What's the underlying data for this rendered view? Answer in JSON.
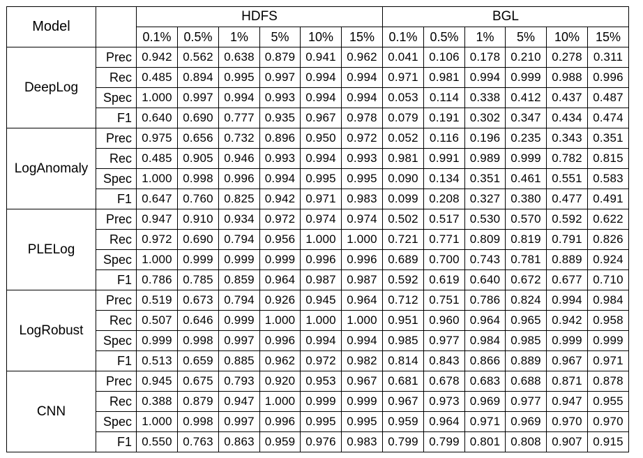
{
  "header": {
    "model_label": "Model",
    "datasets": [
      "HDFS",
      "BGL"
    ],
    "percentages": [
      "0.1%",
      "0.5%",
      "1%",
      "5%",
      "10%",
      "15%"
    ]
  },
  "metrics": [
    "Prec",
    "Rec",
    "Spec",
    "F1"
  ],
  "models": [
    {
      "name": "DeepLog",
      "rows": [
        [
          "0.942",
          "0.562",
          "0.638",
          "0.879",
          "0.941",
          "0.962",
          "0.041",
          "0.106",
          "0.178",
          "0.210",
          "0.278",
          "0.311"
        ],
        [
          "0.485",
          "0.894",
          "0.995",
          "0.997",
          "0.994",
          "0.994",
          "0.971",
          "0.981",
          "0.994",
          "0.999",
          "0.988",
          "0.996"
        ],
        [
          "1.000",
          "0.997",
          "0.994",
          "0.993",
          "0.994",
          "0.994",
          "0.053",
          "0.114",
          "0.338",
          "0.412",
          "0.437",
          "0.487"
        ],
        [
          "0.640",
          "0.690",
          "0.777",
          "0.935",
          "0.967",
          "0.978",
          "0.079",
          "0.191",
          "0.302",
          "0.347",
          "0.434",
          "0.474"
        ]
      ]
    },
    {
      "name": "LogAnomaly",
      "rows": [
        [
          "0.975",
          "0.656",
          "0.732",
          "0.896",
          "0.950",
          "0.972",
          "0.052",
          "0.116",
          "0.196",
          "0.235",
          "0.343",
          "0.351"
        ],
        [
          "0.485",
          "0.905",
          "0.946",
          "0.993",
          "0.994",
          "0.993",
          "0.981",
          "0.991",
          "0.989",
          "0.999",
          "0.782",
          "0.815"
        ],
        [
          "1.000",
          "0.998",
          "0.996",
          "0.994",
          "0.995",
          "0.995",
          "0.090",
          "0.134",
          "0.351",
          "0.461",
          "0.551",
          "0.583"
        ],
        [
          "0.647",
          "0.760",
          "0.825",
          "0.942",
          "0.971",
          "0.983",
          "0.099",
          "0.208",
          "0.327",
          "0.380",
          "0.477",
          "0.491"
        ]
      ]
    },
    {
      "name": "PLELog",
      "rows": [
        [
          "0.947",
          "0.910",
          "0.934",
          "0.972",
          "0.974",
          "0.974",
          "0.502",
          "0.517",
          "0.530",
          "0.570",
          "0.592",
          "0.622"
        ],
        [
          "0.972",
          "0.690",
          "0.794",
          "0.956",
          "1.000",
          "1.000",
          "0.721",
          "0.771",
          "0.809",
          "0.819",
          "0.791",
          "0.826"
        ],
        [
          "1.000",
          "0.999",
          "0.999",
          "0.999",
          "0.996",
          "0.996",
          "0.689",
          "0.700",
          "0.743",
          "0.781",
          "0.889",
          "0.924"
        ],
        [
          "0.786",
          "0.785",
          "0.859",
          "0.964",
          "0.987",
          "0.987",
          "0.592",
          "0.619",
          "0.640",
          "0.672",
          "0.677",
          "0.710"
        ]
      ]
    },
    {
      "name": "LogRobust",
      "rows": [
        [
          "0.519",
          "0.673",
          "0.794",
          "0.926",
          "0.945",
          "0.964",
          "0.712",
          "0.751",
          "0.786",
          "0.824",
          "0.994",
          "0.984"
        ],
        [
          "0.507",
          "0.646",
          "0.999",
          "1.000",
          "1.000",
          "1.000",
          "0.951",
          "0.960",
          "0.964",
          "0.965",
          "0.942",
          "0.958"
        ],
        [
          "0.999",
          "0.998",
          "0.997",
          "0.996",
          "0.994",
          "0.994",
          "0.985",
          "0.977",
          "0.984",
          "0.985",
          "0.999",
          "0.999"
        ],
        [
          "0.513",
          "0.659",
          "0.885",
          "0.962",
          "0.972",
          "0.982",
          "0.814",
          "0.843",
          "0.866",
          "0.889",
          "0.967",
          "0.971"
        ]
      ]
    },
    {
      "name": "CNN",
      "rows": [
        [
          "0.945",
          "0.675",
          "0.793",
          "0.920",
          "0.953",
          "0.967",
          "0.681",
          "0.678",
          "0.683",
          "0.688",
          "0.871",
          "0.878"
        ],
        [
          "0.388",
          "0.879",
          "0.947",
          "1.000",
          "0.999",
          "0.999",
          "0.967",
          "0.973",
          "0.969",
          "0.977",
          "0.947",
          "0.955"
        ],
        [
          "1.000",
          "0.998",
          "0.997",
          "0.996",
          "0.995",
          "0.995",
          "0.959",
          "0.964",
          "0.971",
          "0.969",
          "0.970",
          "0.970"
        ],
        [
          "0.550",
          "0.763",
          "0.863",
          "0.959",
          "0.976",
          "0.983",
          "0.799",
          "0.799",
          "0.801",
          "0.808",
          "0.907",
          "0.915"
        ]
      ]
    }
  ]
}
